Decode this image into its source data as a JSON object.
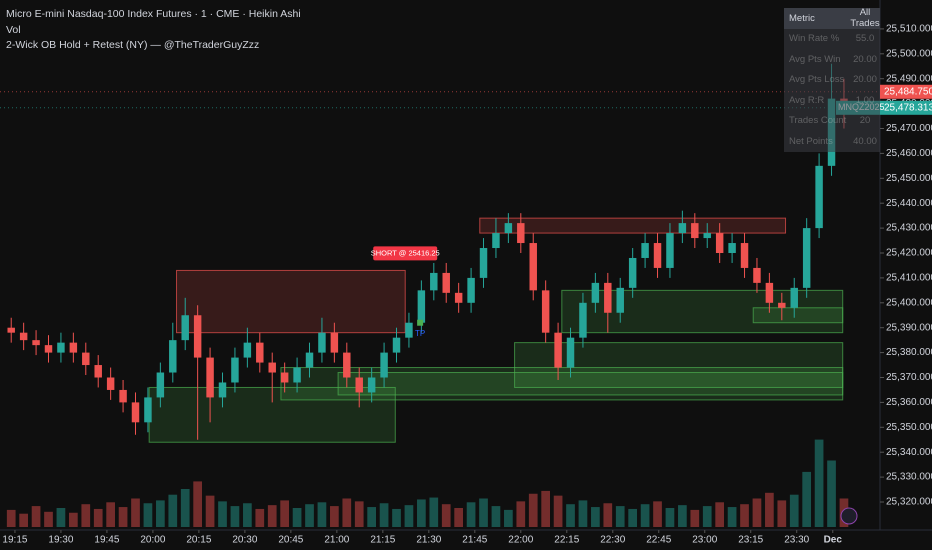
{
  "chart_data": {
    "type": "candlestick",
    "title": "Micro E-mini Nasdaq-100 Index Futures · 1 · CME · Heikin Ashi",
    "volume_title": "Vol",
    "indicator_title": "2-Wick OB Hold + Retest (NY) — @TheTraderGuyZzz",
    "up_color": "#26a69a",
    "down_color": "#ef5350",
    "open": [
      25390,
      25388,
      25385,
      25383,
      25380,
      25384,
      25380,
      25375,
      25370,
      25365,
      25360,
      25352,
      25362,
      25372,
      25385,
      25395,
      25378,
      25362,
      25368,
      25378,
      25384,
      25376,
      25372,
      25368,
      25374,
      25380,
      25388,
      25380,
      25370,
      25364,
      25370,
      25380,
      25386,
      25392,
      25405,
      25412,
      25404,
      25400,
      25410,
      25422,
      25428,
      25432,
      25424,
      25405,
      25388,
      25374,
      25386,
      25400,
      25408,
      25396,
      25406,
      25418,
      25424,
      25414,
      25428,
      25432,
      25426,
      25428,
      25420,
      25424,
      25414,
      25408,
      25400,
      25398,
      25406,
      25430,
      25455,
      25482
    ],
    "high": [
      25394,
      25392,
      25389,
      25387,
      25388,
      25388,
      25384,
      25379,
      25374,
      25369,
      25364,
      25366,
      25376,
      25392,
      25402,
      25399,
      25382,
      25372,
      25382,
      25390,
      25388,
      25380,
      25376,
      25378,
      25384,
      25394,
      25392,
      25384,
      25374,
      25374,
      25384,
      25390,
      25396,
      25409,
      25416,
      25416,
      25408,
      25414,
      25426,
      25434,
      25436,
      25436,
      25428,
      25409,
      25392,
      25390,
      25404,
      25412,
      25412,
      25410,
      25422,
      25428,
      25428,
      25432,
      25437,
      25436,
      25432,
      25432,
      25428,
      25428,
      25418,
      25412,
      25404,
      25410,
      25434,
      25460,
      25496,
      25490
    ],
    "low": [
      25384,
      25381,
      25379,
      25376,
      25376,
      25376,
      25371,
      25366,
      25361,
      25356,
      25347,
      25348,
      25358,
      25368,
      25381,
      25345,
      25352,
      25358,
      25364,
      25374,
      25372,
      25360,
      25364,
      25364,
      25370,
      25376,
      25376,
      25366,
      25358,
      25360,
      25366,
      25376,
      25382,
      25388,
      25401,
      25400,
      25396,
      25396,
      25406,
      25418,
      25424,
      25420,
      25401,
      25384,
      25369,
      25370,
      25382,
      25396,
      25388,
      25392,
      25402,
      25414,
      25410,
      25410,
      25424,
      25422,
      25422,
      25416,
      25416,
      25410,
      25404,
      25396,
      25393,
      25394,
      25402,
      25426,
      25451,
      25470
    ],
    "close": [
      25388,
      25385,
      25383,
      25380,
      25384,
      25380,
      25375,
      25370,
      25365,
      25360,
      25352,
      25362,
      25372,
      25385,
      25395,
      25378,
      25362,
      25368,
      25378,
      25384,
      25376,
      25372,
      25368,
      25374,
      25380,
      25388,
      25380,
      25370,
      25364,
      25370,
      25380,
      25386,
      25392,
      25405,
      25412,
      25404,
      25400,
      25410,
      25422,
      25428,
      25432,
      25424,
      25405,
      25388,
      25374,
      25386,
      25400,
      25408,
      25396,
      25406,
      25418,
      25424,
      25414,
      25428,
      25432,
      25426,
      25428,
      25420,
      25424,
      25414,
      25408,
      25400,
      25398,
      25406,
      25430,
      25455,
      25482,
      25478
    ],
    "volume": [
      18,
      14,
      22,
      16,
      20,
      15,
      24,
      19,
      26,
      21,
      30,
      25,
      28,
      34,
      40,
      48,
      33,
      27,
      22,
      25,
      19,
      23,
      28,
      20,
      24,
      26,
      22,
      30,
      27,
      21,
      25,
      19,
      23,
      29,
      31,
      24,
      20,
      26,
      30,
      22,
      18,
      27,
      35,
      38,
      33,
      24,
      28,
      21,
      25,
      22,
      19,
      24,
      27,
      20,
      23,
      18,
      22,
      26,
      21,
      24,
      30,
      36,
      28,
      34,
      58,
      92,
      70,
      30
    ],
    "volume_ylim": [
      0,
      100
    ],
    "ylim": [
      25320,
      25520
    ],
    "yticks": [
      {
        "value": 25320,
        "label": "25,320.000"
      },
      {
        "value": 25330,
        "label": "25,330.000"
      },
      {
        "value": 25340,
        "label": "25,340.000"
      },
      {
        "value": 25350,
        "label": "25,350.000"
      },
      {
        "value": 25360,
        "label": "25,360.000"
      },
      {
        "value": 25370,
        "label": "25,370.000"
      },
      {
        "value": 25380,
        "label": "25,380.000"
      },
      {
        "value": 25390,
        "label": "25,390.000"
      },
      {
        "value": 25400,
        "label": "25,400.000"
      },
      {
        "value": 25410,
        "label": "25,410.000"
      },
      {
        "value": 25420,
        "label": "25,420.000"
      },
      {
        "value": 25430,
        "label": "25,430.000"
      },
      {
        "value": 25440,
        "label": "25,440.000"
      },
      {
        "value": 25450,
        "label": "25,450.000"
      },
      {
        "value": 25460,
        "label": "25,460.000"
      },
      {
        "value": 25470,
        "label": "25,470.000"
      },
      {
        "value": 25480,
        "label": "25,480.000"
      },
      {
        "value": 25490,
        "label": "25,490.000"
      },
      {
        "value": 25500,
        "label": "25,500.000"
      },
      {
        "value": 25510,
        "label": "25,510.000"
      }
    ],
    "xlim": [
      0,
      70.4
    ],
    "xticks": [
      {
        "value": 0.8,
        "label": "19:15"
      },
      {
        "value": 4.5,
        "label": "19:30"
      },
      {
        "value": 8.2,
        "label": "19:45"
      },
      {
        "value": 11.9,
        "label": "20:00"
      },
      {
        "value": 15.6,
        "label": "20:15"
      },
      {
        "value": 19.3,
        "label": "20:30"
      },
      {
        "value": 23.0,
        "label": "20:45"
      },
      {
        "value": 26.7,
        "label": "21:00"
      },
      {
        "value": 30.4,
        "label": "21:15"
      },
      {
        "value": 34.1,
        "label": "21:30"
      },
      {
        "value": 37.8,
        "label": "21:45"
      },
      {
        "value": 41.5,
        "label": "22:00"
      },
      {
        "value": 45.2,
        "label": "22:15"
      },
      {
        "value": 48.9,
        "label": "22:30"
      },
      {
        "value": 52.6,
        "label": "22:45"
      },
      {
        "value": 56.3,
        "label": "23:00"
      },
      {
        "value": 60.0,
        "label": "23:15"
      },
      {
        "value": 63.7,
        "label": "23:30"
      },
      {
        "value": 66.6,
        "label": "Dec"
      }
    ],
    "zones": [
      {
        "start": 13.8,
        "end": 32.2,
        "top": 25413,
        "bottom": 25388,
        "color": "#ef5350"
      },
      {
        "start": 38.2,
        "end": 62.8,
        "top": 25434,
        "bottom": 25428,
        "color": "#ef5350"
      },
      {
        "start": 11.6,
        "end": 31.4,
        "top": 25366,
        "bottom": 25344,
        "color": "#4caf50"
      },
      {
        "start": 22.2,
        "end": 67.4,
        "top": 25374,
        "bottom": 25361,
        "color": "#4caf50"
      },
      {
        "start": 26.8,
        "end": 67.4,
        "top": 25372,
        "bottom": 25363,
        "color": "#4caf50"
      },
      {
        "start": 41.0,
        "end": 67.4,
        "top": 25384,
        "bottom": 25366,
        "color": "#4caf50"
      },
      {
        "start": 44.8,
        "end": 67.4,
        "top": 25405,
        "bottom": 25388,
        "color": "#4caf50"
      },
      {
        "start": 60.2,
        "end": 67.4,
        "top": 25398,
        "bottom": 25392,
        "color": "#4caf50"
      }
    ],
    "signal": {
      "label": "SHORT @ 25416.25",
      "value": 25416.25,
      "at": 32.2
    },
    "target": {
      "label": "TP",
      "value": 25392,
      "at": 33.4
    },
    "price_labels": [
      {
        "value": 25484.75,
        "label": "25,484.750",
        "color": "#ef5350"
      },
      {
        "value": 25478.313,
        "label": "25,478.313",
        "symbol": "MNQZ2025",
        "color": "#26a69a"
      }
    ],
    "stats_table": {
      "header": [
        "Metric",
        "All Trades"
      ],
      "rows": [
        [
          "Win Rate %",
          "55.0"
        ],
        [
          "Avg Pts Win",
          "20.00"
        ],
        [
          "Avg Pts Loss",
          "20.00"
        ],
        [
          "Avg R:R",
          "1.00"
        ],
        [
          "Trades Count",
          "20"
        ],
        [
          "Net Points",
          "40.00"
        ]
      ]
    }
  }
}
